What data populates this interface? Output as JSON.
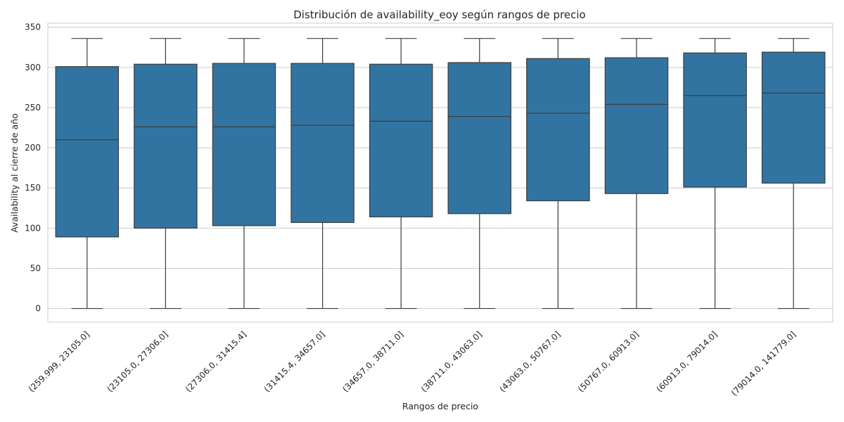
{
  "chart_data": {
    "type": "box",
    "title": "Distribución de availability_eoy según rangos de precio",
    "xlabel": "Rangos de precio",
    "ylabel": "Availability al cierre de año",
    "ylim": [
      -17,
      355
    ],
    "yticks": [
      0,
      50,
      100,
      150,
      200,
      250,
      300,
      350
    ],
    "grid": true,
    "box_color": "#3274a1",
    "edge_color": "#3c3c3c",
    "grid_color": "#cccccc",
    "categories": [
      "(259.999, 23105.0]",
      "(23105.0, 27306.0]",
      "(27306.0, 31415.4]",
      "(31415.4, 34657.0]",
      "(34657.0, 38711.0]",
      "(38711.0, 43063.0]",
      "(43063.0, 50767.0]",
      "(50767.0, 60913.0]",
      "(60913.0, 79014.0]",
      "(79014.0, 141779.0]"
    ],
    "boxes": [
      {
        "whisker_low": 0,
        "q1": 89,
        "median": 210,
        "q3": 301,
        "whisker_high": 336
      },
      {
        "whisker_low": 0,
        "q1": 100,
        "median": 226,
        "q3": 304,
        "whisker_high": 336
      },
      {
        "whisker_low": 0,
        "q1": 103,
        "median": 226,
        "q3": 305,
        "whisker_high": 336
      },
      {
        "whisker_low": 0,
        "q1": 107,
        "median": 228,
        "q3": 305,
        "whisker_high": 336
      },
      {
        "whisker_low": 0,
        "q1": 114,
        "median": 233,
        "q3": 304,
        "whisker_high": 336
      },
      {
        "whisker_low": 0,
        "q1": 118,
        "median": 239,
        "q3": 306,
        "whisker_high": 336
      },
      {
        "whisker_low": 0,
        "q1": 134,
        "median": 243,
        "q3": 311,
        "whisker_high": 336
      },
      {
        "whisker_low": 0,
        "q1": 143,
        "median": 254,
        "q3": 312,
        "whisker_high": 336
      },
      {
        "whisker_low": 0,
        "q1": 151,
        "median": 265,
        "q3": 318,
        "whisker_high": 336
      },
      {
        "whisker_low": 0,
        "q1": 156,
        "median": 268,
        "q3": 319,
        "whisker_high": 336
      }
    ]
  }
}
